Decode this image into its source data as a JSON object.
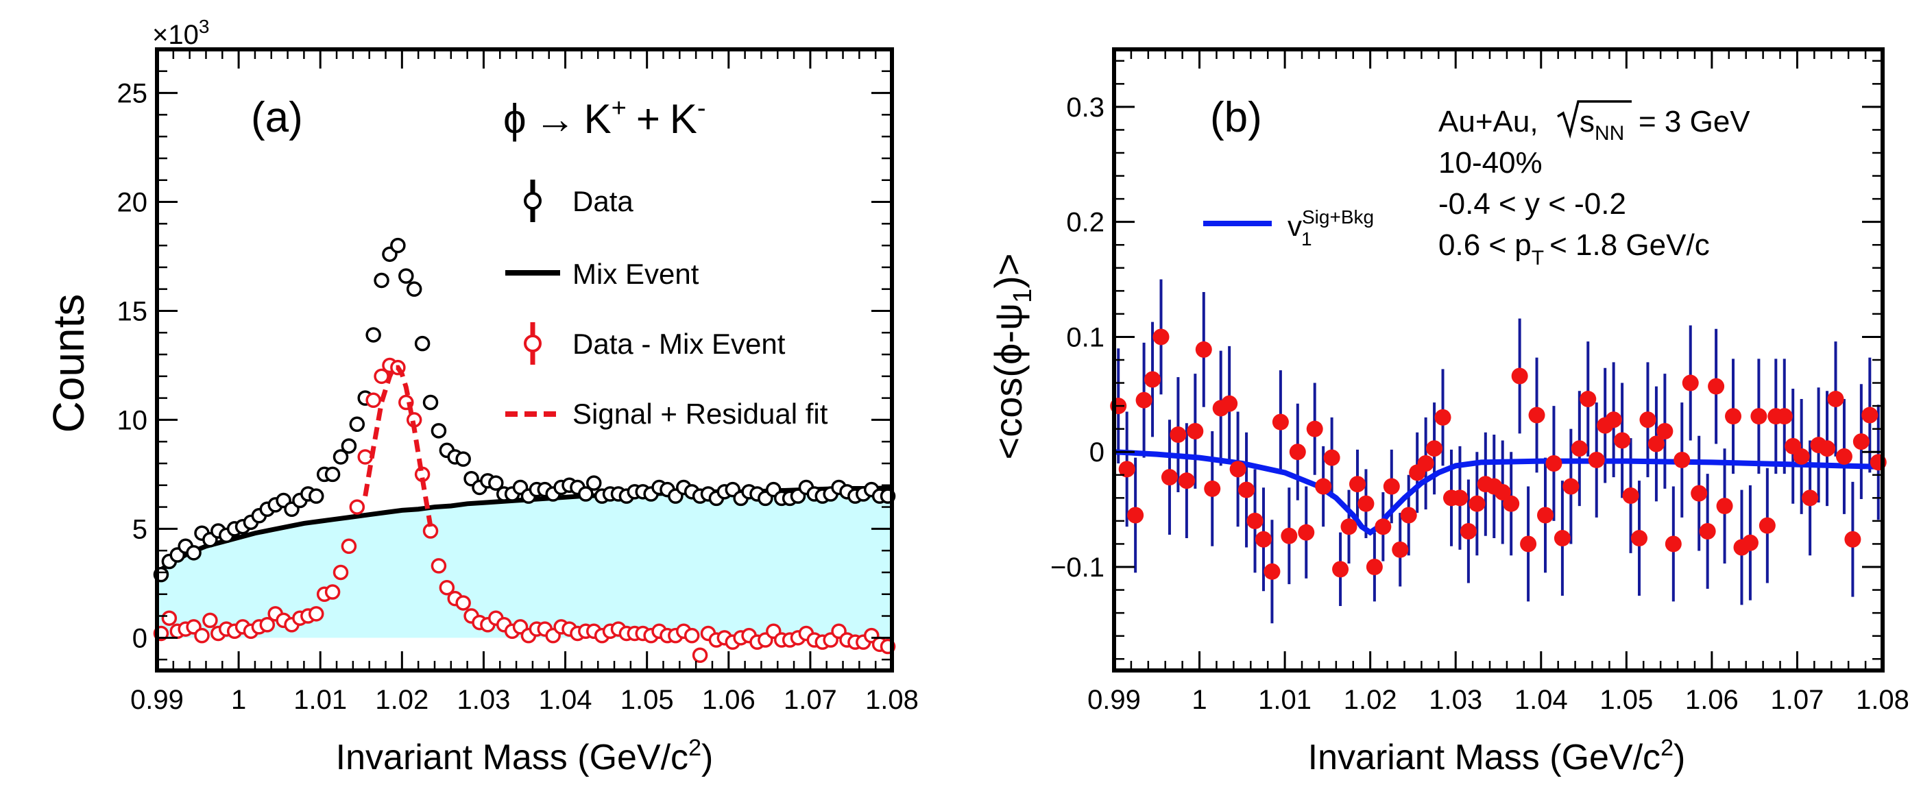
{
  "chart_data": [
    {
      "type": "scatter",
      "panel_label": "(a)",
      "reaction": {
        "phi": "ϕ",
        "arrow": "→",
        "kplus": "K",
        "plus_sup": "+",
        "plus": "+",
        "kminus": "K",
        "minus_sup": "-"
      },
      "xlabel": "Invariant Mass (GeV/c",
      "xlabel_sup": "2",
      "xlabel_end": ")",
      "ylabel": "Counts",
      "y_multiplier": "×10",
      "y_multiplier_exp": "3",
      "xlim": [
        0.99,
        1.08
      ],
      "ylim": [
        -1.5,
        27
      ],
      "x_ticks": [
        "0.99",
        "1",
        "1.01",
        "1.02",
        "1.03",
        "1.04",
        "1.05",
        "1.06",
        "1.07",
        "1.08"
      ],
      "y_ticks": [
        "0",
        "5",
        "10",
        "15",
        "20",
        "25"
      ],
      "legend": {
        "placement": "top-right",
        "entries": [
          {
            "label": "Data",
            "color": "#000000",
            "marker": "open-circle"
          },
          {
            "label": "Mix Event",
            "color": "#000000",
            "marker": "line"
          },
          {
            "label": "Data - Mix Event",
            "color": "#e8141e",
            "marker": "open-circle"
          },
          {
            "label": "Signal + Residual fit",
            "color": "#e8141e",
            "marker": "dashed-line"
          }
        ]
      },
      "fill_color": "#ccfcff",
      "series": [
        {
          "name": "Data",
          "color": "#000000",
          "x": [
            0.9905,
            0.9915,
            0.9925,
            0.9935,
            0.9945,
            0.9955,
            0.9965,
            0.9975,
            0.9985,
            0.9995,
            1.0005,
            1.0015,
            1.0025,
            1.0035,
            1.0045,
            1.0055,
            1.0065,
            1.0075,
            1.0085,
            1.0095,
            1.0105,
            1.0115,
            1.0125,
            1.0135,
            1.0145,
            1.0155,
            1.0165,
            1.0175,
            1.0185,
            1.0195,
            1.0205,
            1.0215,
            1.0225,
            1.0235,
            1.0245,
            1.0255,
            1.0265,
            1.0275,
            1.0285,
            1.0295,
            1.0305,
            1.0315,
            1.0325,
            1.0335,
            1.0345,
            1.0355,
            1.0365,
            1.0375,
            1.0385,
            1.0395,
            1.0405,
            1.0415,
            1.0425,
            1.0435,
            1.0445,
            1.0455,
            1.0465,
            1.0475,
            1.0485,
            1.0495,
            1.0505,
            1.0515,
            1.0525,
            1.0535,
            1.0545,
            1.0555,
            1.0565,
            1.0575,
            1.0585,
            1.0595,
            1.0605,
            1.0615,
            1.0625,
            1.0635,
            1.0645,
            1.0655,
            1.0665,
            1.0675,
            1.0685,
            1.0695,
            1.0705,
            1.0715,
            1.0725,
            1.0735,
            1.0745,
            1.0755,
            1.0765,
            1.0775,
            1.0785,
            1.0795
          ],
          "y": [
            2.9,
            3.5,
            3.8,
            4.2,
            3.9,
            4.8,
            4.5,
            4.9,
            4.7,
            5.0,
            5.1,
            5.3,
            5.6,
            5.9,
            6.1,
            6.3,
            5.9,
            6.3,
            6.6,
            6.5,
            7.5,
            7.5,
            8.3,
            8.8,
            9.8,
            11.0,
            13.9,
            16.4,
            17.6,
            18.0,
            16.6,
            16.0,
            13.5,
            10.8,
            9.5,
            8.6,
            8.3,
            8.2,
            7.3,
            6.9,
            7.2,
            7.1,
            6.6,
            6.6,
            6.9,
            6.5,
            6.8,
            6.8,
            6.6,
            6.9,
            7.0,
            6.9,
            6.6,
            7.1,
            6.5,
            6.6,
            6.6,
            6.5,
            6.7,
            6.7,
            6.6,
            6.9,
            6.8,
            6.5,
            6.9,
            6.7,
            6.5,
            6.6,
            6.4,
            6.7,
            6.8,
            6.4,
            6.7,
            6.6,
            6.4,
            6.8,
            6.4,
            6.4,
            6.5,
            6.9,
            6.6,
            6.5,
            6.6,
            6.9,
            6.7,
            6.5,
            6.6,
            6.8,
            6.5,
            6.5
          ]
        },
        {
          "name": "Mix Event",
          "color": "#000000",
          "x": [
            0.99,
            0.992,
            0.994,
            0.996,
            0.998,
            1.0,
            1.002,
            1.004,
            1.006,
            1.008,
            1.01,
            1.012,
            1.014,
            1.016,
            1.018,
            1.02,
            1.022,
            1.024,
            1.026,
            1.028,
            1.03,
            1.034,
            1.038,
            1.042,
            1.046,
            1.05,
            1.054,
            1.058,
            1.062,
            1.066,
            1.07,
            1.074,
            1.078,
            1.08
          ],
          "y": [
            3.0,
            3.5,
            3.9,
            4.2,
            4.4,
            4.6,
            4.8,
            4.95,
            5.1,
            5.25,
            5.35,
            5.45,
            5.55,
            5.65,
            5.75,
            5.85,
            5.9,
            6.0,
            6.05,
            6.15,
            6.2,
            6.3,
            6.4,
            6.5,
            6.55,
            6.6,
            6.65,
            6.7,
            6.7,
            6.75,
            6.8,
            6.85,
            6.85,
            6.9
          ]
        },
        {
          "name": "Data - Mix Event",
          "color": "#e8141e",
          "x": [
            0.9905,
            0.9915,
            0.9925,
            0.9935,
            0.9945,
            0.9955,
            0.9965,
            0.9975,
            0.9985,
            0.9995,
            1.0005,
            1.0015,
            1.0025,
            1.0035,
            1.0045,
            1.0055,
            1.0065,
            1.0075,
            1.0085,
            1.0095,
            1.0105,
            1.0115,
            1.0125,
            1.0135,
            1.0145,
            1.0155,
            1.0165,
            1.0175,
            1.0185,
            1.0195,
            1.0205,
            1.0215,
            1.0225,
            1.0235,
            1.0245,
            1.0255,
            1.0265,
            1.0275,
            1.0285,
            1.0295,
            1.0305,
            1.0315,
            1.0325,
            1.0335,
            1.0345,
            1.0355,
            1.0365,
            1.0375,
            1.0385,
            1.0395,
            1.0405,
            1.0415,
            1.0425,
            1.0435,
            1.0445,
            1.0455,
            1.0465,
            1.0475,
            1.0485,
            1.0495,
            1.0505,
            1.0515,
            1.0525,
            1.0535,
            1.0545,
            1.0555,
            1.0565,
            1.0575,
            1.0585,
            1.0595,
            1.0605,
            1.0615,
            1.0625,
            1.0635,
            1.0645,
            1.0655,
            1.0665,
            1.0675,
            1.0685,
            1.0695,
            1.0705,
            1.0715,
            1.0725,
            1.0735,
            1.0745,
            1.0755,
            1.0765,
            1.0775,
            1.0785,
            1.0795
          ],
          "y": [
            0.2,
            0.9,
            0.3,
            0.4,
            0.5,
            0.1,
            0.8,
            0.2,
            0.4,
            0.3,
            0.5,
            0.3,
            0.5,
            0.6,
            1.1,
            0.8,
            0.6,
            0.9,
            1.0,
            1.1,
            2.0,
            2.1,
            3.0,
            4.2,
            6.0,
            8.3,
            10.9,
            12.0,
            12.5,
            12.4,
            10.8,
            10.0,
            7.5,
            4.9,
            3.3,
            2.3,
            1.8,
            1.6,
            1.0,
            0.7,
            0.6,
            0.9,
            0.6,
            0.3,
            0.5,
            0.1,
            0.4,
            0.4,
            0.1,
            0.5,
            0.4,
            0.2,
            0.3,
            0.3,
            0.1,
            0.3,
            0.4,
            0.2,
            0.2,
            0.2,
            0.1,
            0.3,
            0.1,
            0.1,
            0.3,
            0.1,
            -0.8,
            0.2,
            -0.1,
            0.0,
            -0.2,
            0.0,
            0.1,
            -0.2,
            -0.1,
            0.3,
            -0.1,
            -0.1,
            0.0,
            0.2,
            -0.1,
            -0.2,
            -0.1,
            0.3,
            -0.1,
            -0.2,
            -0.2,
            0.1,
            -0.3,
            -0.4
          ]
        },
        {
          "name": "Signal + Residual fit",
          "color": "#e8141e",
          "x": [
            1.0155,
            1.0165,
            1.0175,
            1.0185,
            1.019,
            1.0195,
            1.02,
            1.0205,
            1.0215,
            1.0225,
            1.0235
          ],
          "y": [
            6.5,
            8.7,
            10.8,
            12.0,
            12.4,
            12.4,
            12.1,
            11.5,
            9.6,
            7.3,
            5.1
          ]
        }
      ]
    },
    {
      "type": "scatter",
      "panel_label": "(b)",
      "annotation": {
        "line1_pre": "Au+Au,",
        "line1_root_s": "s",
        "line1_root_sub": "NN",
        "line1_post": "= 3 GeV",
        "line2": "10-40%",
        "line3": "-0.4 < y < -0.2",
        "line4_pre": "0.6 < p",
        "line4_sub": "T",
        "line4_post": "< 1.8 GeV/c"
      },
      "xlabel": "Invariant Mass (GeV/c",
      "xlabel_sup": "2",
      "xlabel_end": ")",
      "ylabel_pre": "<cos(ϕ-ψ",
      "ylabel_sub": "1",
      "ylabel_post": ")>",
      "xlim": [
        0.99,
        1.08
      ],
      "ylim": [
        -0.19,
        0.35
      ],
      "x_ticks": [
        "0.99",
        "1",
        "1.01",
        "1.02",
        "1.03",
        "1.04",
        "1.05",
        "1.06",
        "1.07",
        "1.08"
      ],
      "y_ticks": [
        "−0.1",
        "0",
        "0.1",
        "0.2",
        "0.3"
      ],
      "legend": {
        "placement": "top-left",
        "entries": [
          {
            "label_main": "v",
            "label_sup": "Sig+Bkg",
            "label_sub": "1",
            "color": "#0a1ef0",
            "marker": "line"
          }
        ]
      },
      "series": [
        {
          "name": "data",
          "color": "#f01414",
          "errcolor": "#141a9a",
          "x": [
            0.9905,
            0.9915,
            0.9925,
            0.9935,
            0.9945,
            0.9955,
            0.9965,
            0.9975,
            0.9985,
            0.9995,
            1.0005,
            1.0015,
            1.0025,
            1.0035,
            1.0045,
            1.0055,
            1.0065,
            1.0075,
            1.0085,
            1.0095,
            1.0105,
            1.0115,
            1.0125,
            1.0135,
            1.0145,
            1.0155,
            1.0165,
            1.0175,
            1.0185,
            1.0195,
            1.0205,
            1.0215,
            1.0225,
            1.0235,
            1.0245,
            1.0255,
            1.0265,
            1.0275,
            1.0285,
            1.0295,
            1.0305,
            1.0315,
            1.0325,
            1.0335,
            1.0345,
            1.0355,
            1.0365,
            1.0375,
            1.0385,
            1.0395,
            1.0405,
            1.0415,
            1.0425,
            1.0435,
            1.0445,
            1.0455,
            1.0465,
            1.0475,
            1.0485,
            1.0495,
            1.0505,
            1.0515,
            1.0525,
            1.0535,
            1.0545,
            1.0555,
            1.0565,
            1.0575,
            1.0585,
            1.0595,
            1.0605,
            1.0615,
            1.0625,
            1.0635,
            1.0645,
            1.0655,
            1.0665,
            1.0675,
            1.0685,
            1.0695,
            1.0705,
            1.0715,
            1.0725,
            1.0735,
            1.0745,
            1.0755,
            1.0765,
            1.0775,
            1.0785,
            1.0795
          ],
          "y": [
            0.04,
            -0.015,
            -0.055,
            0.045,
            0.063,
            0.1,
            -0.022,
            0.015,
            -0.025,
            0.018,
            0.089,
            -0.032,
            0.038,
            0.042,
            -0.015,
            -0.033,
            -0.06,
            -0.076,
            -0.104,
            0.026,
            -0.073,
            0.0,
            -0.07,
            0.02,
            -0.03,
            -0.005,
            -0.102,
            -0.065,
            -0.028,
            -0.045,
            -0.1,
            -0.065,
            -0.03,
            -0.085,
            -0.055,
            -0.018,
            -0.01,
            0.003,
            0.03,
            -0.04,
            -0.04,
            -0.069,
            -0.045,
            -0.028,
            -0.03,
            -0.035,
            -0.045,
            0.066,
            -0.08,
            0.032,
            -0.055,
            -0.01,
            -0.075,
            -0.03,
            0.003,
            0.046,
            -0.007,
            0.023,
            0.028,
            0.01,
            -0.038,
            -0.075,
            0.028,
            0.007,
            0.018,
            -0.08,
            -0.007,
            0.06,
            -0.036,
            -0.069,
            0.057,
            -0.047,
            0.031,
            -0.083,
            -0.079,
            0.031,
            -0.064,
            0.031,
            0.031,
            0.005,
            -0.004,
            -0.04,
            0.006,
            0.003,
            0.046,
            -0.004,
            -0.076,
            0.009,
            0.032,
            -0.009
          ],
          "err": [
            0.05,
            0.05,
            0.05,
            0.05,
            0.05,
            0.05,
            0.05,
            0.05,
            0.05,
            0.05,
            0.05,
            0.05,
            0.05,
            0.05,
            0.05,
            0.05,
            0.045,
            0.045,
            0.045,
            0.045,
            0.042,
            0.042,
            0.04,
            0.04,
            0.035,
            0.035,
            0.032,
            0.032,
            0.03,
            0.03,
            0.03,
            0.03,
            0.032,
            0.032,
            0.035,
            0.035,
            0.04,
            0.04,
            0.042,
            0.042,
            0.045,
            0.045,
            0.045,
            0.045,
            0.045,
            0.045,
            0.045,
            0.05,
            0.05,
            0.05,
            0.05,
            0.05,
            0.05,
            0.05,
            0.05,
            0.05,
            0.05,
            0.05,
            0.05,
            0.05,
            0.05,
            0.05,
            0.05,
            0.05,
            0.05,
            0.05,
            0.05,
            0.05,
            0.05,
            0.05,
            0.05,
            0.05,
            0.05,
            0.05,
            0.05,
            0.05,
            0.05,
            0.05,
            0.05,
            0.05,
            0.05,
            0.05,
            0.05,
            0.05,
            0.05,
            0.05,
            0.05,
            0.05,
            0.05,
            0.05
          ]
        },
        {
          "name": "v1 Sig+Bkg",
          "color": "#0a1ef0",
          "x": [
            0.99,
            0.995,
            1.0,
            1.005,
            1.01,
            1.014,
            1.016,
            1.018,
            1.019,
            1.02,
            1.021,
            1.022,
            1.024,
            1.026,
            1.028,
            1.03,
            1.033,
            1.04,
            1.05,
            1.06,
            1.07,
            1.08
          ],
          "y": [
            0.0,
            -0.002,
            -0.005,
            -0.01,
            -0.018,
            -0.03,
            -0.04,
            -0.055,
            -0.065,
            -0.07,
            -0.065,
            -0.055,
            -0.04,
            -0.027,
            -0.018,
            -0.012,
            -0.009,
            -0.008,
            -0.008,
            -0.009,
            -0.011,
            -0.013
          ]
        }
      ]
    }
  ]
}
